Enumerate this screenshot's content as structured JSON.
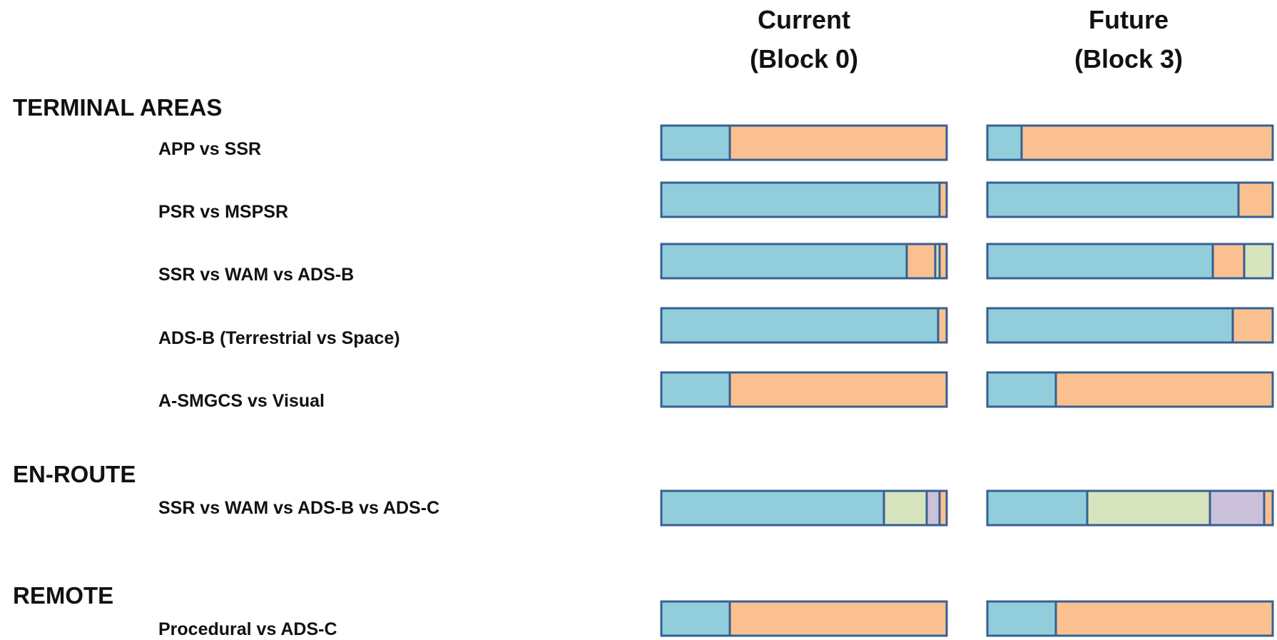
{
  "chart_data": {
    "type": "bar",
    "stacked": true,
    "orientation": "horizontal",
    "normalized": true,
    "columns": [
      {
        "line1": "Current",
        "line2": "(Block 0)"
      },
      {
        "line1": "Future",
        "line2": "(Block 3)"
      }
    ],
    "sections": [
      {
        "title": "TERMINAL AREAS",
        "rows": [
          {
            "label": "APP vs SSR",
            "current": [
              0.24,
              0.76
            ],
            "future": [
              0.12,
              0.88
            ]
          },
          {
            "label": "PSR vs MSPSR",
            "current": [
              0.975,
              0.025
            ],
            "future": [
              0.88,
              0.12
            ]
          },
          {
            "label": "SSR vs WAM vs ADS-B",
            "current": [
              0.86,
              0.1,
              0.015,
              0.025
            ],
            "future": [
              0.79,
              0.11,
              0.1
            ]
          },
          {
            "label": "ADS-B (Terrestrial vs Space)",
            "current": [
              0.97,
              0.03
            ],
            "future": [
              0.86,
              0.14
            ]
          },
          {
            "label": "A-SMGCS vs Visual",
            "current": [
              0.24,
              0.76
            ],
            "future": [
              0.24,
              0.76
            ]
          }
        ]
      },
      {
        "title": "EN-ROUTE",
        "rows": [
          {
            "label": "SSR vs WAM vs ADS-B vs ADS-C",
            "current": [
              0.78,
              0.15,
              0.045,
              0.025
            ],
            "future": [
              0.35,
              0.43,
              0.19,
              0.03
            ]
          }
        ]
      },
      {
        "title": "REMOTE",
        "rows": [
          {
            "label": "Procedural  vs ADS-C",
            "current": [
              0.24,
              0.76
            ],
            "future": [
              0.24,
              0.76
            ]
          }
        ]
      }
    ],
    "segment_colors_by_row": [
      [
        "#92cddc",
        "#fac090"
      ],
      [
        "#92cddc",
        "#fac090"
      ],
      [
        "#92cddc",
        "#fac090",
        "#d7e4bd",
        "#fac090"
      ],
      [
        "#92cddc",
        "#fac090"
      ],
      [
        "#92cddc",
        "#fac090"
      ],
      [
        "#92cddc",
        "#d7e4bd",
        "#ccc1da",
        "#fac090"
      ],
      [
        "#92cddc",
        "#fac090"
      ]
    ],
    "future_colors_by_row": [
      [
        "#92cddc",
        "#fac090"
      ],
      [
        "#92cddc",
        "#fac090"
      ],
      [
        "#92cddc",
        "#fac090",
        "#d7e4bd"
      ],
      [
        "#92cddc",
        "#fac090"
      ],
      [
        "#92cddc",
        "#fac090"
      ],
      [
        "#92cddc",
        "#d7e4bd",
        "#ccc1da",
        "#fac090"
      ],
      [
        "#92cddc",
        "#fac090"
      ]
    ],
    "border_color": "#366092",
    "grid": false,
    "legend": "none"
  }
}
